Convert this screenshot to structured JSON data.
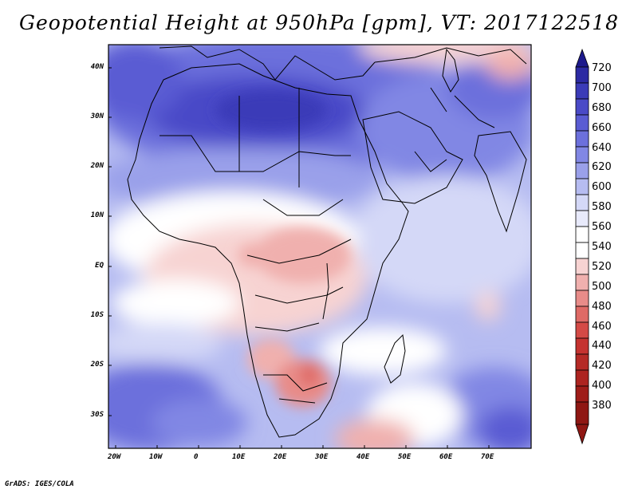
{
  "title": "Geopotential Height at 950hPa [gpm], VT: 2017122518",
  "footer": "GrADS: IGES/COLA",
  "lat_labels": [
    "40N",
    "30N",
    "20N",
    "10N",
    "EQ",
    "10S",
    "20S",
    "30S"
  ],
  "lon_labels": [
    "20W",
    "10W",
    "0",
    "10E",
    "20E",
    "30E",
    "40E",
    "50E",
    "60E",
    "70E"
  ],
  "colorbar": {
    "levels": [
      "720",
      "700",
      "680",
      "660",
      "640",
      "620",
      "600",
      "580",
      "560",
      "540",
      "520",
      "500",
      "480",
      "460",
      "440",
      "420",
      "400",
      "380"
    ],
    "colors": [
      "#1d1a8c",
      "#2c2aa3",
      "#3b3bb8",
      "#4a4ac7",
      "#5a5cd3",
      "#6c70dc",
      "#8187e4",
      "#9aa0ea",
      "#b6bcf1",
      "#d4d8f7",
      "#ffffff",
      "#f7d3d2",
      "#f0b0ae",
      "#e88c89",
      "#df6a66",
      "#d44a46",
      "#c53330",
      "#ad2420",
      "#8f1713"
    ]
  },
  "map": {
    "extent": {
      "lon_min": -20,
      "lon_max": 80,
      "lat_min": -37,
      "lat_max": 45
    }
  }
}
